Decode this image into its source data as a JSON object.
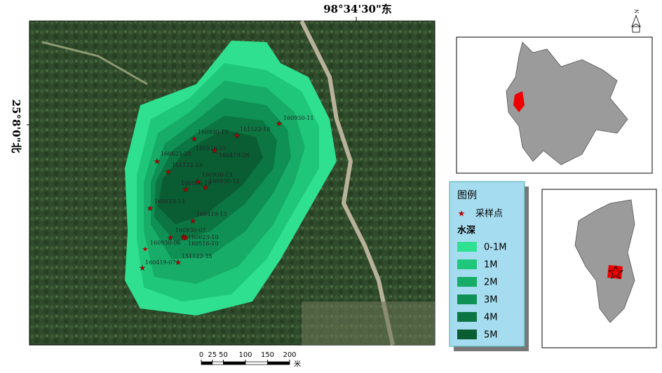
{
  "map": {
    "lon_label": "98°34'30\"东",
    "lat_label": "25°8'0\"北",
    "north": "N",
    "samples": [
      "160930-11",
      "151122-18",
      "160930-13",
      "160516-22",
      "160419-26",
      "160623-20",
      "151122-23",
      "160930-13",
      "160516-19",
      "160930-12",
      "160623-13",
      "160419-13",
      "160930-07",
      "160623-10",
      "160930-06",
      "160516-10",
      "160419-07",
      "151122-35"
    ]
  },
  "legend": {
    "title": "图例",
    "symbol_label": "采样点",
    "depth_title": "水深",
    "classes": [
      "0-1M",
      "1M",
      "2M",
      "3M",
      "4M",
      "5M"
    ]
  },
  "scale": {
    "ticks": [
      0,
      25,
      50,
      100,
      150,
      200
    ],
    "unit": "米"
  }
}
